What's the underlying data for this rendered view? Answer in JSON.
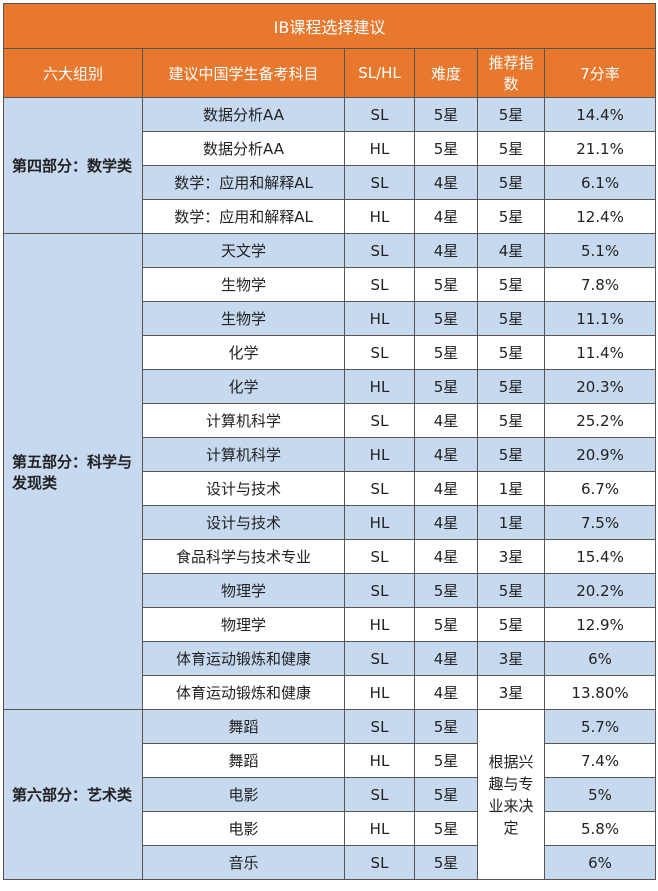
{
  "title": "IB课程选择建议",
  "headers": [
    "六大组别",
    "建议中国学生备考科目",
    "SL/HL",
    "难度",
    "推荐指数",
    "7分率"
  ],
  "groups": [
    {
      "name": "第四部分：数学类",
      "rows": [
        {
          "subject": "数据分析AA",
          "level": "SL",
          "difficulty": "5星",
          "recommend": "5星",
          "rate": "14.4%"
        },
        {
          "subject": "数据分析AA",
          "level": "HL",
          "difficulty": "5星",
          "recommend": "5星",
          "rate": "21.1%"
        },
        {
          "subject": "数学：应用和解释AL",
          "level": "SL",
          "difficulty": "4星",
          "recommend": "5星",
          "rate": "6.1%"
        },
        {
          "subject": "数学：应用和解释AL",
          "level": "HL",
          "difficulty": "4星",
          "recommend": "5星",
          "rate": "12.4%"
        }
      ]
    },
    {
      "name": "第五部分：科学与发现类",
      "rows": [
        {
          "subject": "天文学",
          "level": "SL",
          "difficulty": "4星",
          "recommend": "4星",
          "rate": "5.1%"
        },
        {
          "subject": "生物学",
          "level": "SL",
          "difficulty": "5星",
          "recommend": "5星",
          "rate": "7.8%"
        },
        {
          "subject": "生物学",
          "level": "HL",
          "difficulty": "5星",
          "recommend": "5星",
          "rate": "11.1%"
        },
        {
          "subject": "化学",
          "level": "SL",
          "difficulty": "5星",
          "recommend": "5星",
          "rate": "11.4%"
        },
        {
          "subject": "化学",
          "level": "HL",
          "difficulty": "5星",
          "recommend": "5星",
          "rate": "20.3%"
        },
        {
          "subject": "计算机科学",
          "level": "SL",
          "difficulty": "4星",
          "recommend": "5星",
          "rate": "25.2%"
        },
        {
          "subject": "计算机科学",
          "level": "HL",
          "difficulty": "4星",
          "recommend": "5星",
          "rate": "20.9%"
        },
        {
          "subject": "设计与技术",
          "level": "SL",
          "difficulty": "4星",
          "recommend": "1星",
          "rate": "6.7%"
        },
        {
          "subject": "设计与技术",
          "level": "HL",
          "difficulty": "4星",
          "recommend": "1星",
          "rate": "7.5%"
        },
        {
          "subject": "食品科学与技术专业",
          "level": "SL",
          "difficulty": "4星",
          "recommend": "3星",
          "rate": "15.4%"
        },
        {
          "subject": "物理学",
          "level": "SL",
          "difficulty": "5星",
          "recommend": "5星",
          "rate": "20.2%"
        },
        {
          "subject": "物理学",
          "level": "HL",
          "difficulty": "5星",
          "recommend": "5星",
          "rate": "12.9%"
        },
        {
          "subject": "体育运动锻炼和健康",
          "level": "SL",
          "difficulty": "4星",
          "recommend": "3星",
          "rate": "6%"
        },
        {
          "subject": "体育运动锻炼和健康",
          "level": "HL",
          "difficulty": "4星",
          "recommend": "3星",
          "rate": "13.80%"
        }
      ]
    },
    {
      "name": "第六部分：艺术类",
      "recommend": "根据兴趣与专业来决定",
      "rows": [
        {
          "subject": "舞蹈",
          "level": "SL",
          "difficulty": "5星",
          "rate": "5.7%"
        },
        {
          "subject": "舞蹈",
          "level": "HL",
          "difficulty": "5星",
          "rate": "7.4%"
        },
        {
          "subject": "电影",
          "level": "SL",
          "difficulty": "5星",
          "rate": "5%"
        },
        {
          "subject": "电影",
          "level": "HL",
          "difficulty": "5星",
          "rate": "5.8%"
        },
        {
          "subject": "音乐",
          "level": "SL",
          "difficulty": "5星",
          "rate": "6%"
        }
      ]
    }
  ]
}
